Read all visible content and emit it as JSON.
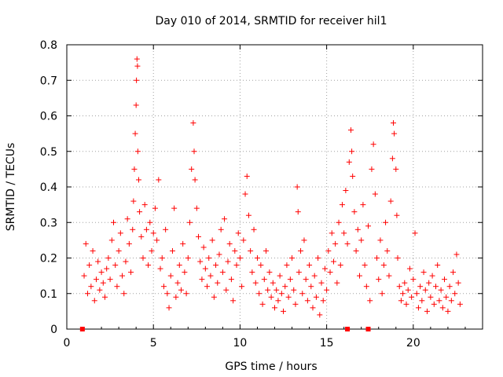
{
  "chart_data": {
    "type": "scatter",
    "title": "Day 010 of 2014, SRMTID for receiver hil1",
    "xlabel": "GPS time / hours",
    "ylabel": "SRMTID / TECUs",
    "xlim": [
      0,
      24
    ],
    "ylim": [
      0,
      0.8
    ],
    "xticks": [
      0,
      5,
      10,
      15,
      20
    ],
    "xtick_labels": [
      "0",
      "5",
      "10",
      "15",
      "20"
    ],
    "yticks": [
      0,
      0.1,
      0.2,
      0.3,
      0.4,
      0.5,
      0.6,
      0.7,
      0.8
    ],
    "ytick_labels": [
      "0",
      "0.1",
      "0.2",
      "0.3",
      "0.4",
      "0.5",
      "0.6",
      "0.7",
      "0.8"
    ],
    "grid": true,
    "marker": "+",
    "color": "#ff0000",
    "series": [
      {
        "name": "SRMTID",
        "points": [
          [
            1.0,
            0.15
          ],
          [
            1.1,
            0.24
          ],
          [
            1.2,
            0.1
          ],
          [
            1.3,
            0.18
          ],
          [
            1.4,
            0.12
          ],
          [
            1.5,
            0.22
          ],
          [
            1.6,
            0.08
          ],
          [
            1.7,
            0.14
          ],
          [
            1.8,
            0.19
          ],
          [
            1.9,
            0.11
          ],
          [
            2.0,
            0.16
          ],
          [
            2.1,
            0.13
          ],
          [
            2.2,
            0.09
          ],
          [
            2.3,
            0.17
          ],
          [
            2.4,
            0.2
          ],
          [
            2.5,
            0.14
          ],
          [
            2.6,
            0.25
          ],
          [
            2.7,
            0.3
          ],
          [
            2.8,
            0.18
          ],
          [
            2.9,
            0.12
          ],
          [
            3.0,
            0.22
          ],
          [
            3.1,
            0.27
          ],
          [
            3.2,
            0.15
          ],
          [
            3.3,
            0.1
          ],
          [
            3.4,
            0.19
          ],
          [
            3.5,
            0.31
          ],
          [
            3.6,
            0.24
          ],
          [
            3.7,
            0.16
          ],
          [
            3.8,
            0.28
          ],
          [
            3.85,
            0.36
          ],
          [
            3.9,
            0.45
          ],
          [
            3.95,
            0.55
          ],
          [
            4.0,
            0.63
          ],
          [
            4.02,
            0.7
          ],
          [
            4.05,
            0.76
          ],
          [
            4.08,
            0.74
          ],
          [
            4.1,
            0.5
          ],
          [
            4.15,
            0.42
          ],
          [
            4.2,
            0.33
          ],
          [
            4.3,
            0.26
          ],
          [
            4.4,
            0.2
          ],
          [
            4.5,
            0.35
          ],
          [
            4.6,
            0.28
          ],
          [
            4.7,
            0.18
          ],
          [
            4.8,
            0.3
          ],
          [
            4.9,
            0.22
          ],
          [
            5.0,
            0.27
          ],
          [
            5.1,
            0.34
          ],
          [
            5.2,
            0.25
          ],
          [
            5.3,
            0.42
          ],
          [
            5.4,
            0.17
          ],
          [
            5.5,
            0.2
          ],
          [
            5.6,
            0.12
          ],
          [
            5.7,
            0.28
          ],
          [
            5.8,
            0.1
          ],
          [
            5.9,
            0.06
          ],
          [
            6.0,
            0.15
          ],
          [
            6.1,
            0.22
          ],
          [
            6.2,
            0.34
          ],
          [
            6.3,
            0.09
          ],
          [
            6.4,
            0.13
          ],
          [
            6.5,
            0.18
          ],
          [
            6.6,
            0.11
          ],
          [
            6.7,
            0.24
          ],
          [
            6.8,
            0.16
          ],
          [
            6.9,
            0.1
          ],
          [
            7.0,
            0.2
          ],
          [
            7.1,
            0.3
          ],
          [
            7.2,
            0.45
          ],
          [
            7.3,
            0.58
          ],
          [
            7.35,
            0.5
          ],
          [
            7.4,
            0.42
          ],
          [
            7.5,
            0.34
          ],
          [
            7.6,
            0.26
          ],
          [
            7.7,
            0.19
          ],
          [
            7.8,
            0.14
          ],
          [
            7.9,
            0.23
          ],
          [
            8.0,
            0.17
          ],
          [
            8.1,
            0.12
          ],
          [
            8.2,
            0.2
          ],
          [
            8.3,
            0.15
          ],
          [
            8.4,
            0.25
          ],
          [
            8.5,
            0.09
          ],
          [
            8.6,
            0.18
          ],
          [
            8.7,
            0.13
          ],
          [
            8.8,
            0.21
          ],
          [
            8.9,
            0.28
          ],
          [
            9.0,
            0.16
          ],
          [
            9.1,
            0.31
          ],
          [
            9.2,
            0.11
          ],
          [
            9.3,
            0.19
          ],
          [
            9.4,
            0.24
          ],
          [
            9.5,
            0.14
          ],
          [
            9.6,
            0.08
          ],
          [
            9.7,
            0.22
          ],
          [
            9.8,
            0.18
          ],
          [
            9.9,
            0.27
          ],
          [
            10.0,
            0.2
          ],
          [
            10.1,
            0.12
          ],
          [
            10.2,
            0.25
          ],
          [
            10.3,
            0.38
          ],
          [
            10.4,
            0.43
          ],
          [
            10.5,
            0.32
          ],
          [
            10.6,
            0.22
          ],
          [
            10.7,
            0.16
          ],
          [
            10.8,
            0.28
          ],
          [
            10.9,
            0.13
          ],
          [
            11.0,
            0.2
          ],
          [
            11.1,
            0.1
          ],
          [
            11.2,
            0.18
          ],
          [
            11.3,
            0.07
          ],
          [
            11.4,
            0.14
          ],
          [
            11.5,
            0.22
          ],
          [
            11.6,
            0.11
          ],
          [
            11.7,
            0.16
          ],
          [
            11.8,
            0.09
          ],
          [
            11.9,
            0.13
          ],
          [
            12.0,
            0.06
          ],
          [
            12.1,
            0.11
          ],
          [
            12.2,
            0.08
          ],
          [
            12.3,
            0.15
          ],
          [
            12.4,
            0.1
          ],
          [
            12.5,
            0.05
          ],
          [
            12.6,
            0.12
          ],
          [
            12.7,
            0.18
          ],
          [
            12.8,
            0.09
          ],
          [
            12.9,
            0.14
          ],
          [
            13.0,
            0.2
          ],
          [
            13.1,
            0.11
          ],
          [
            13.2,
            0.07
          ],
          [
            13.3,
            0.4
          ],
          [
            13.35,
            0.33
          ],
          [
            13.4,
            0.16
          ],
          [
            13.5,
            0.22
          ],
          [
            13.6,
            0.1
          ],
          [
            13.7,
            0.25
          ],
          [
            13.8,
            0.14
          ],
          [
            13.9,
            0.08
          ],
          [
            14.0,
            0.18
          ],
          [
            14.1,
            0.12
          ],
          [
            14.2,
            0.06
          ],
          [
            14.3,
            0.15
          ],
          [
            14.4,
            0.09
          ],
          [
            14.5,
            0.2
          ],
          [
            14.6,
            0.04
          ],
          [
            14.7,
            0.13
          ],
          [
            14.8,
            0.08
          ],
          [
            14.9,
            0.17
          ],
          [
            15.0,
            0.11
          ],
          [
            15.1,
            0.22
          ],
          [
            15.2,
            0.16
          ],
          [
            15.3,
            0.27
          ],
          [
            15.4,
            0.19
          ],
          [
            15.5,
            0.24
          ],
          [
            15.6,
            0.13
          ],
          [
            15.7,
            0.3
          ],
          [
            15.8,
            0.18
          ],
          [
            15.9,
            0.35
          ],
          [
            16.0,
            0.27
          ],
          [
            16.1,
            0.39
          ],
          [
            16.2,
            0.24
          ],
          [
            16.3,
            0.47
          ],
          [
            16.4,
            0.56
          ],
          [
            16.45,
            0.5
          ],
          [
            16.5,
            0.43
          ],
          [
            16.6,
            0.33
          ],
          [
            16.7,
            0.22
          ],
          [
            16.8,
            0.28
          ],
          [
            16.9,
            0.15
          ],
          [
            17.0,
            0.25
          ],
          [
            17.1,
            0.35
          ],
          [
            17.2,
            0.18
          ],
          [
            17.3,
            0.12
          ],
          [
            17.4,
            0.29
          ],
          [
            17.5,
            0.08
          ],
          [
            17.6,
            0.45
          ],
          [
            17.7,
            0.52
          ],
          [
            17.8,
            0.38
          ],
          [
            17.9,
            0.2
          ],
          [
            18.0,
            0.14
          ],
          [
            18.1,
            0.25
          ],
          [
            18.2,
            0.1
          ],
          [
            18.3,
            0.18
          ],
          [
            18.4,
            0.3
          ],
          [
            18.5,
            0.22
          ],
          [
            18.6,
            0.15
          ],
          [
            18.7,
            0.36
          ],
          [
            18.8,
            0.48
          ],
          [
            18.85,
            0.58
          ],
          [
            18.9,
            0.55
          ],
          [
            19.0,
            0.45
          ],
          [
            19.05,
            0.32
          ],
          [
            19.1,
            0.2
          ],
          [
            19.2,
            0.12
          ],
          [
            19.3,
            0.08
          ],
          [
            19.4,
            0.1
          ],
          [
            19.5,
            0.13
          ],
          [
            19.6,
            0.07
          ],
          [
            19.7,
            0.11
          ],
          [
            19.8,
            0.17
          ],
          [
            19.9,
            0.09
          ],
          [
            20.0,
            0.14
          ],
          [
            20.1,
            0.27
          ],
          [
            20.2,
            0.1
          ],
          [
            20.3,
            0.06
          ],
          [
            20.4,
            0.12
          ],
          [
            20.5,
            0.08
          ],
          [
            20.6,
            0.16
          ],
          [
            20.7,
            0.11
          ],
          [
            20.8,
            0.05
          ],
          [
            20.9,
            0.13
          ],
          [
            21.0,
            0.09
          ],
          [
            21.1,
            0.15
          ],
          [
            21.2,
            0.07
          ],
          [
            21.3,
            0.12
          ],
          [
            21.4,
            0.18
          ],
          [
            21.5,
            0.08
          ],
          [
            21.6,
            0.11
          ],
          [
            21.7,
            0.06
          ],
          [
            21.8,
            0.14
          ],
          [
            21.9,
            0.09
          ],
          [
            22.0,
            0.05
          ],
          [
            22.1,
            0.12
          ],
          [
            22.2,
            0.08
          ],
          [
            22.3,
            0.16
          ],
          [
            22.4,
            0.1
          ],
          [
            22.5,
            0.21
          ],
          [
            22.6,
            0.13
          ],
          [
            22.7,
            0.07
          ]
        ]
      }
    ],
    "baseline_markers": [
      0.9,
      16.2,
      17.4
    ]
  }
}
